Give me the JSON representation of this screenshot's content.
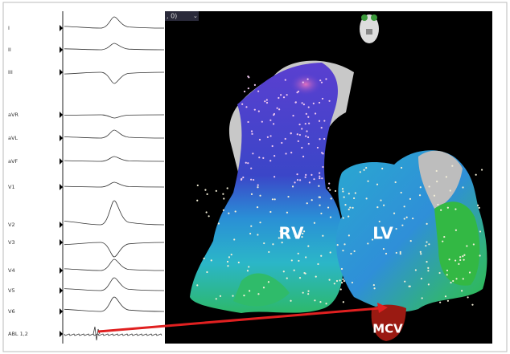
{
  "toolbar": {
    "dropdown": ", 0)"
  },
  "ecg": {
    "leads": [
      "I",
      "II",
      "III",
      "aVR",
      "aVL",
      "aVF",
      "V1",
      "V2",
      "V3",
      "V4",
      "V5",
      "V6",
      "ABL 1,2"
    ]
  },
  "map": {
    "labels": [
      "RV",
      "LV",
      "MCV"
    ]
  }
}
